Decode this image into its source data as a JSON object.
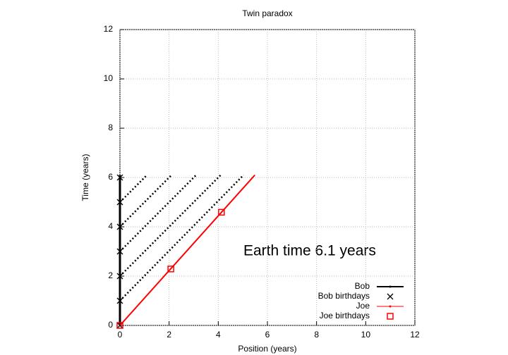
{
  "chart_data": {
    "type": "line",
    "title": "Twin paradox",
    "xlabel": "Position (years)",
    "ylabel": "Time (years)",
    "annotation": "Earth time  6.1 years",
    "xlim": [
      0,
      12
    ],
    "ylim": [
      0,
      12
    ],
    "xticks": [
      0,
      2,
      4,
      6,
      8,
      10,
      12
    ],
    "yticks": [
      0,
      2,
      4,
      6,
      8,
      10,
      12
    ],
    "grid": true,
    "legend": "lower right",
    "series": [
      {
        "name": "Bob",
        "color": "#000000",
        "marker": "line",
        "x": [
          0,
          0
        ],
        "y": [
          0,
          6.1
        ]
      },
      {
        "name": "Bob birthdays",
        "color": "#000000",
        "marker": "x",
        "x": [
          0,
          0,
          0,
          0,
          0,
          0,
          0
        ],
        "y": [
          0,
          1,
          2,
          3,
          4,
          5,
          6
        ]
      },
      {
        "name": "Joe",
        "color": "#ff0000",
        "marker": "line",
        "x": [
          0,
          5.49
        ],
        "y": [
          0,
          6.1
        ]
      },
      {
        "name": "Joe birthdays",
        "color": "#ff0000",
        "marker": "square",
        "x": [
          0,
          2.07,
          4.13
        ],
        "y": [
          0,
          2.29,
          4.59
        ]
      }
    ],
    "signals": {
      "color": "#000000",
      "lines": [
        {
          "x": [
            0,
            1.1
          ],
          "y": [
            5,
            6.1
          ]
        },
        {
          "x": [
            0,
            2.1
          ],
          "y": [
            4,
            6.1
          ]
        },
        {
          "x": [
            0,
            3.1
          ],
          "y": [
            3,
            6.1
          ]
        },
        {
          "x": [
            0,
            4.1
          ],
          "y": [
            2,
            6.1
          ]
        },
        {
          "x": [
            0,
            5.03
          ],
          "y": [
            1,
            6.1
          ]
        }
      ]
    }
  }
}
